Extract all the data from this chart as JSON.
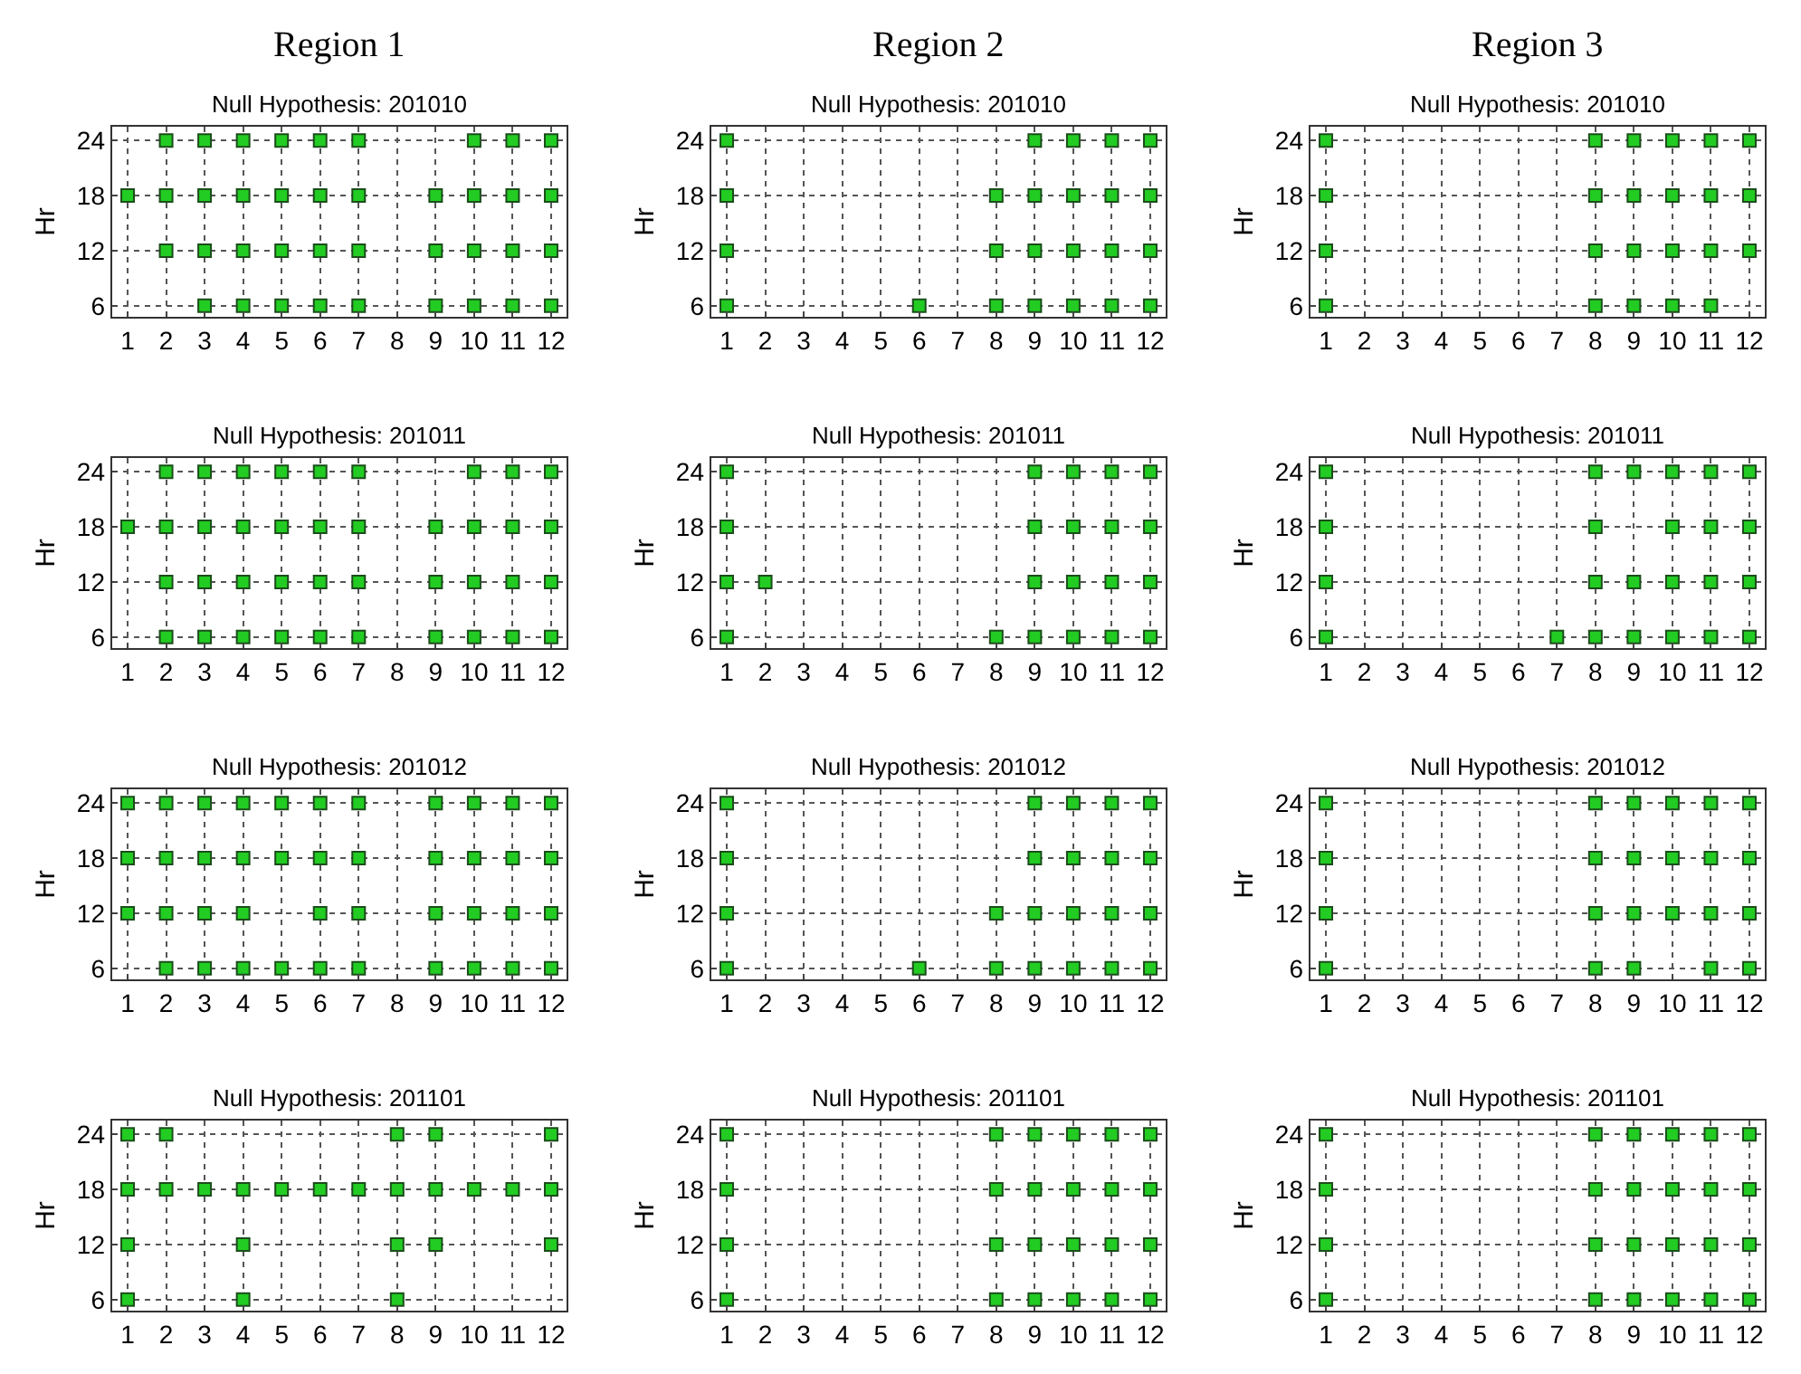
{
  "chart_data": [
    {
      "type": "scatter",
      "annotations": [
        "Region 1"
      ],
      "title": "Null Hypothesis: 201010",
      "ylabel": "Hr",
      "marker": "square",
      "grid": true,
      "color": "#22cc22",
      "xlim": [
        0.6,
        12.4
      ],
      "xticks": [
        1,
        2,
        3,
        4,
        5,
        6,
        7,
        8,
        9,
        10,
        11,
        12
      ],
      "ylim": [
        4.8,
        25.5
      ],
      "yticks": [
        6,
        12,
        18,
        24
      ],
      "x": [
        2,
        3,
        4,
        5,
        6,
        7,
        10,
        11,
        12,
        1,
        2,
        3,
        4,
        5,
        6,
        7,
        9,
        10,
        11,
        12,
        2,
        3,
        4,
        5,
        6,
        7,
        9,
        10,
        11,
        12,
        3,
        4,
        5,
        6,
        7,
        9,
        10,
        11,
        12
      ],
      "values": [
        24,
        24,
        24,
        24,
        24,
        24,
        24,
        24,
        24,
        18,
        18,
        18,
        18,
        18,
        18,
        18,
        18,
        18,
        18,
        18,
        12,
        12,
        12,
        12,
        12,
        12,
        12,
        12,
        12,
        12,
        6,
        6,
        6,
        6,
        6,
        6,
        6,
        6,
        6
      ]
    },
    {
      "type": "scatter",
      "annotations": [
        "Region 2"
      ],
      "title": "Null Hypothesis: 201010",
      "ylabel": "Hr",
      "marker": "square",
      "grid": true,
      "color": "#22cc22",
      "xlim": [
        0.6,
        12.4
      ],
      "xticks": [
        1,
        2,
        3,
        4,
        5,
        6,
        7,
        8,
        9,
        10,
        11,
        12
      ],
      "ylim": [
        4.8,
        25.5
      ],
      "yticks": [
        6,
        12,
        18,
        24
      ],
      "x": [
        1,
        9,
        10,
        11,
        12,
        1,
        8,
        9,
        10,
        11,
        12,
        1,
        8,
        9,
        10,
        11,
        12,
        1,
        6,
        8,
        9,
        10,
        11,
        12
      ],
      "values": [
        24,
        24,
        24,
        24,
        24,
        18,
        18,
        18,
        18,
        18,
        18,
        12,
        12,
        12,
        12,
        12,
        12,
        6,
        6,
        6,
        6,
        6,
        6,
        6
      ]
    },
    {
      "type": "scatter",
      "annotations": [
        "Region 3"
      ],
      "title": "Null Hypothesis: 201010",
      "ylabel": "Hr",
      "marker": "square",
      "grid": true,
      "color": "#22cc22",
      "xlim": [
        0.6,
        12.4
      ],
      "xticks": [
        1,
        2,
        3,
        4,
        5,
        6,
        7,
        8,
        9,
        10,
        11,
        12
      ],
      "ylim": [
        4.8,
        25.5
      ],
      "yticks": [
        6,
        12,
        18,
        24
      ],
      "x": [
        1,
        8,
        9,
        10,
        11,
        12,
        1,
        8,
        9,
        10,
        11,
        12,
        1,
        8,
        9,
        10,
        11,
        12,
        1,
        8,
        9,
        10,
        11
      ],
      "values": [
        24,
        24,
        24,
        24,
        24,
        24,
        18,
        18,
        18,
        18,
        18,
        18,
        12,
        12,
        12,
        12,
        12,
        12,
        6,
        6,
        6,
        6,
        6
      ]
    },
    {
      "type": "scatter",
      "title": "Null Hypothesis: 201011",
      "ylabel": "Hr",
      "marker": "square",
      "grid": true,
      "color": "#22cc22",
      "xlim": [
        0.6,
        12.4
      ],
      "xticks": [
        1,
        2,
        3,
        4,
        5,
        6,
        7,
        8,
        9,
        10,
        11,
        12
      ],
      "ylim": [
        4.8,
        25.5
      ],
      "yticks": [
        6,
        12,
        18,
        24
      ],
      "x": [
        2,
        3,
        4,
        5,
        6,
        7,
        10,
        11,
        12,
        1,
        2,
        3,
        4,
        5,
        6,
        7,
        9,
        10,
        11,
        12,
        2,
        3,
        4,
        5,
        6,
        7,
        9,
        10,
        11,
        12,
        2,
        3,
        4,
        5,
        6,
        7,
        9,
        10,
        11,
        12
      ],
      "values": [
        24,
        24,
        24,
        24,
        24,
        24,
        24,
        24,
        24,
        18,
        18,
        18,
        18,
        18,
        18,
        18,
        18,
        18,
        18,
        18,
        12,
        12,
        12,
        12,
        12,
        12,
        12,
        12,
        12,
        12,
        6,
        6,
        6,
        6,
        6,
        6,
        6,
        6,
        6,
        6
      ]
    },
    {
      "type": "scatter",
      "title": "Null Hypothesis: 201011",
      "ylabel": "Hr",
      "marker": "square",
      "grid": true,
      "color": "#22cc22",
      "xlim": [
        0.6,
        12.4
      ],
      "xticks": [
        1,
        2,
        3,
        4,
        5,
        6,
        7,
        8,
        9,
        10,
        11,
        12
      ],
      "ylim": [
        4.8,
        25.5
      ],
      "yticks": [
        6,
        12,
        18,
        24
      ],
      "x": [
        1,
        9,
        10,
        11,
        12,
        1,
        9,
        10,
        11,
        12,
        1,
        2,
        9,
        10,
        11,
        12,
        1,
        8,
        9,
        10,
        11,
        12
      ],
      "values": [
        24,
        24,
        24,
        24,
        24,
        18,
        18,
        18,
        18,
        18,
        12,
        12,
        12,
        12,
        12,
        12,
        6,
        6,
        6,
        6,
        6,
        6
      ]
    },
    {
      "type": "scatter",
      "title": "Null Hypothesis: 201011",
      "ylabel": "Hr",
      "marker": "square",
      "grid": true,
      "color": "#22cc22",
      "xlim": [
        0.6,
        12.4
      ],
      "xticks": [
        1,
        2,
        3,
        4,
        5,
        6,
        7,
        8,
        9,
        10,
        11,
        12
      ],
      "ylim": [
        4.8,
        25.5
      ],
      "yticks": [
        6,
        12,
        18,
        24
      ],
      "x": [
        1,
        8,
        9,
        10,
        11,
        12,
        1,
        8,
        10,
        11,
        12,
        1,
        8,
        9,
        10,
        11,
        12,
        1,
        7,
        8,
        9,
        10,
        11,
        12
      ],
      "values": [
        24,
        24,
        24,
        24,
        24,
        24,
        18,
        18,
        18,
        18,
        18,
        12,
        12,
        12,
        12,
        12,
        12,
        6,
        6,
        6,
        6,
        6,
        6,
        6
      ]
    },
    {
      "type": "scatter",
      "title": "Null Hypothesis: 201012",
      "ylabel": "Hr",
      "marker": "square",
      "grid": true,
      "color": "#22cc22",
      "xlim": [
        0.6,
        12.4
      ],
      "xticks": [
        1,
        2,
        3,
        4,
        5,
        6,
        7,
        8,
        9,
        10,
        11,
        12
      ],
      "ylim": [
        4.8,
        25.5
      ],
      "yticks": [
        6,
        12,
        18,
        24
      ],
      "x": [
        1,
        2,
        3,
        4,
        5,
        6,
        7,
        9,
        10,
        11,
        12,
        1,
        2,
        3,
        4,
        5,
        6,
        7,
        9,
        10,
        11,
        12,
        1,
        2,
        3,
        4,
        6,
        7,
        9,
        10,
        11,
        12,
        2,
        3,
        4,
        5,
        6,
        7,
        9,
        10,
        11,
        12
      ],
      "values": [
        24,
        24,
        24,
        24,
        24,
        24,
        24,
        24,
        24,
        24,
        24,
        18,
        18,
        18,
        18,
        18,
        18,
        18,
        18,
        18,
        18,
        18,
        12,
        12,
        12,
        12,
        12,
        12,
        12,
        12,
        12,
        12,
        6,
        6,
        6,
        6,
        6,
        6,
        6,
        6,
        6,
        6
      ]
    },
    {
      "type": "scatter",
      "title": "Null Hypothesis: 201012",
      "ylabel": "Hr",
      "marker": "square",
      "grid": true,
      "color": "#22cc22",
      "xlim": [
        0.6,
        12.4
      ],
      "xticks": [
        1,
        2,
        3,
        4,
        5,
        6,
        7,
        8,
        9,
        10,
        11,
        12
      ],
      "ylim": [
        4.8,
        25.5
      ],
      "yticks": [
        6,
        12,
        18,
        24
      ],
      "x": [
        1,
        9,
        10,
        11,
        12,
        1,
        9,
        10,
        11,
        12,
        1,
        8,
        9,
        10,
        11,
        12,
        1,
        6,
        8,
        9,
        10,
        11,
        12
      ],
      "values": [
        24,
        24,
        24,
        24,
        24,
        18,
        18,
        18,
        18,
        18,
        12,
        12,
        12,
        12,
        12,
        12,
        6,
        6,
        6,
        6,
        6,
        6,
        6
      ]
    },
    {
      "type": "scatter",
      "title": "Null Hypothesis: 201012",
      "ylabel": "Hr",
      "marker": "square",
      "grid": true,
      "color": "#22cc22",
      "xlim": [
        0.6,
        12.4
      ],
      "xticks": [
        1,
        2,
        3,
        4,
        5,
        6,
        7,
        8,
        9,
        10,
        11,
        12
      ],
      "ylim": [
        4.8,
        25.5
      ],
      "yticks": [
        6,
        12,
        18,
        24
      ],
      "x": [
        1,
        8,
        9,
        10,
        11,
        12,
        1,
        8,
        9,
        10,
        11,
        12,
        1,
        8,
        9,
        10,
        11,
        12,
        1,
        8,
        9,
        11,
        12
      ],
      "values": [
        24,
        24,
        24,
        24,
        24,
        24,
        18,
        18,
        18,
        18,
        18,
        18,
        12,
        12,
        12,
        12,
        12,
        12,
        6,
        6,
        6,
        6,
        6
      ]
    },
    {
      "type": "scatter",
      "title": "Null Hypothesis: 201101",
      "ylabel": "Hr",
      "marker": "square",
      "grid": true,
      "color": "#22cc22",
      "xlim": [
        0.6,
        12.4
      ],
      "xticks": [
        1,
        2,
        3,
        4,
        5,
        6,
        7,
        8,
        9,
        10,
        11,
        12
      ],
      "ylim": [
        4.8,
        25.5
      ],
      "yticks": [
        6,
        12,
        18,
        24
      ],
      "x": [
        1,
        2,
        8,
        9,
        12,
        1,
        2,
        3,
        4,
        5,
        6,
        7,
        8,
        9,
        10,
        11,
        12,
        1,
        4,
        8,
        9,
        12,
        1,
        4,
        8
      ],
      "values": [
        24,
        24,
        24,
        24,
        24,
        18,
        18,
        18,
        18,
        18,
        18,
        18,
        18,
        18,
        18,
        18,
        18,
        12,
        12,
        12,
        12,
        12,
        6,
        6,
        6
      ]
    },
    {
      "type": "scatter",
      "title": "Null Hypothesis: 201101",
      "ylabel": "Hr",
      "marker": "square",
      "grid": true,
      "color": "#22cc22",
      "xlim": [
        0.6,
        12.4
      ],
      "xticks": [
        1,
        2,
        3,
        4,
        5,
        6,
        7,
        8,
        9,
        10,
        11,
        12
      ],
      "ylim": [
        4.8,
        25.5
      ],
      "yticks": [
        6,
        12,
        18,
        24
      ],
      "x": [
        1,
        8,
        9,
        10,
        11,
        12,
        1,
        8,
        9,
        10,
        11,
        12,
        1,
        8,
        9,
        10,
        11,
        12,
        1,
        8,
        9,
        10,
        11,
        12
      ],
      "values": [
        24,
        24,
        24,
        24,
        24,
        24,
        18,
        18,
        18,
        18,
        18,
        18,
        12,
        12,
        12,
        12,
        12,
        12,
        6,
        6,
        6,
        6,
        6,
        6
      ]
    },
    {
      "type": "scatter",
      "title": "Null Hypothesis: 201101",
      "ylabel": "Hr",
      "marker": "square",
      "grid": true,
      "color": "#22cc22",
      "xlim": [
        0.6,
        12.4
      ],
      "xticks": [
        1,
        2,
        3,
        4,
        5,
        6,
        7,
        8,
        9,
        10,
        11,
        12
      ],
      "ylim": [
        4.8,
        25.5
      ],
      "yticks": [
        6,
        12,
        18,
        24
      ],
      "x": [
        1,
        8,
        9,
        10,
        11,
        12,
        1,
        8,
        9,
        10,
        11,
        12,
        1,
        8,
        9,
        10,
        11,
        12,
        1,
        8,
        9,
        10,
        11,
        12
      ],
      "values": [
        24,
        24,
        24,
        24,
        24,
        24,
        18,
        18,
        18,
        18,
        18,
        18,
        12,
        12,
        12,
        12,
        12,
        12,
        6,
        6,
        6,
        6,
        6,
        6
      ]
    }
  ]
}
